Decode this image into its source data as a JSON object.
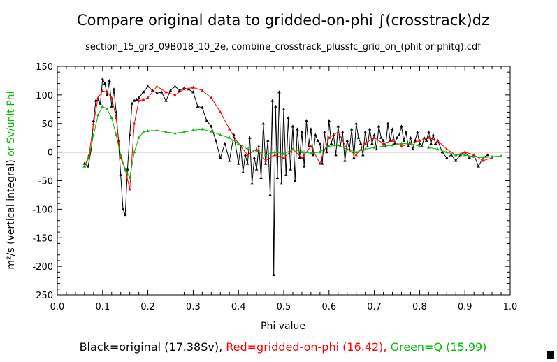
{
  "chart_data": {
    "type": "line",
    "title": "Compare original data to gridded-on-phi ∫(crosstrack)dz",
    "subtitle": "section_15_gr3_09B018_10_2e, combine_crosstrack_plussfc_grid_on_(phit or phitq).cdf",
    "xlabel": "Phi value",
    "ylabel_black": "m²/s (vertical integral)",
    "ylabel_or": " or ",
    "ylabel_green": "Sv/unit Phi",
    "xlim": [
      0.0,
      1.0
    ],
    "ylim": [
      -250,
      150
    ],
    "xticks": [
      "0.0",
      "0.1",
      "0.2",
      "0.3",
      "0.4",
      "0.5",
      "0.6",
      "0.7",
      "0.8",
      "0.9",
      "1.0"
    ],
    "yticks": [
      "150",
      "100",
      "50",
      "0",
      "-50",
      "-100",
      "-150",
      "-200",
      "-250"
    ],
    "footer": {
      "black": "Black=original (17.38Sv), ",
      "red": "Red=gridded-on-phi (16.42), ",
      "green": "Green=Q (15.99)"
    },
    "colors": {
      "black": "#000000",
      "red": "#ff0000",
      "green": "#00bb00"
    },
    "series": [
      {
        "color_key": "black",
        "x": [
          0.06,
          0.068,
          0.075,
          0.08,
          0.085,
          0.09,
          0.095,
          0.1,
          0.105,
          0.11,
          0.115,
          0.12,
          0.125,
          0.13,
          0.135,
          0.14,
          0.145,
          0.15,
          0.155,
          0.16,
          0.165,
          0.17,
          0.175,
          0.18,
          0.19,
          0.2,
          0.21,
          0.22,
          0.23,
          0.24,
          0.25,
          0.26,
          0.27,
          0.28,
          0.29,
          0.3,
          0.31,
          0.32,
          0.33,
          0.34,
          0.35,
          0.36,
          0.37,
          0.38,
          0.39,
          0.4,
          0.405,
          0.41,
          0.415,
          0.42,
          0.425,
          0.43,
          0.435,
          0.44,
          0.445,
          0.45,
          0.455,
          0.46,
          0.465,
          0.47,
          0.475,
          0.478,
          0.482,
          0.486,
          0.49,
          0.495,
          0.5,
          0.505,
          0.51,
          0.515,
          0.52,
          0.525,
          0.53,
          0.535,
          0.54,
          0.545,
          0.55,
          0.555,
          0.56,
          0.565,
          0.57,
          0.575,
          0.58,
          0.585,
          0.59,
          0.595,
          0.6,
          0.605,
          0.61,
          0.615,
          0.62,
          0.625,
          0.63,
          0.635,
          0.64,
          0.645,
          0.65,
          0.655,
          0.66,
          0.665,
          0.67,
          0.675,
          0.68,
          0.685,
          0.69,
          0.695,
          0.7,
          0.705,
          0.71,
          0.715,
          0.72,
          0.725,
          0.73,
          0.735,
          0.74,
          0.745,
          0.75,
          0.755,
          0.76,
          0.765,
          0.77,
          0.775,
          0.78,
          0.785,
          0.79,
          0.795,
          0.8,
          0.805,
          0.81,
          0.815,
          0.82,
          0.825,
          0.83,
          0.835,
          0.84,
          0.85,
          0.86,
          0.87,
          0.88,
          0.89,
          0.9,
          0.91,
          0.92,
          0.93,
          0.94,
          0.95
        ],
        "values": [
          -20,
          -25,
          5,
          55,
          90,
          92,
          85,
          128,
          120,
          100,
          125,
          80,
          110,
          70,
          20,
          -40,
          -100,
          -110,
          -30,
          30,
          85,
          90,
          92,
          95,
          105,
          115,
          108,
          103,
          105,
          90,
          108,
          115,
          108,
          112,
          110,
          105,
          80,
          78,
          55,
          45,
          20,
          -10,
          15,
          -15,
          30,
          -20,
          10,
          -35,
          -5,
          -20,
          25,
          -55,
          -10,
          -30,
          10,
          -45,
          50,
          -20,
          20,
          -75,
          90,
          -215,
          80,
          -45,
          105,
          -55,
          75,
          -40,
          60,
          -30,
          45,
          -50,
          40,
          -10,
          35,
          -25,
          55,
          10,
          40,
          -5,
          30,
          20,
          15,
          -20,
          35,
          0,
          55,
          15,
          30,
          -5,
          45,
          10,
          35,
          -15,
          20,
          5,
          40,
          -10,
          50,
          25,
          15,
          -5,
          35,
          10,
          40,
          15,
          30,
          5,
          45,
          25,
          20,
          10,
          50,
          20,
          40,
          15,
          25,
          30,
          45,
          20,
          35,
          10,
          25,
          5,
          20,
          35,
          15,
          10,
          25,
          20,
          35,
          15,
          30,
          15,
          20,
          0,
          -10,
          -5,
          -15,
          -5,
          0,
          -10,
          -5,
          -25,
          -10,
          -5
        ]
      },
      {
        "color_key": "red",
        "x": [
          0.06,
          0.07,
          0.08,
          0.09,
          0.1,
          0.11,
          0.12,
          0.13,
          0.14,
          0.15,
          0.16,
          0.17,
          0.18,
          0.19,
          0.2,
          0.22,
          0.24,
          0.26,
          0.28,
          0.3,
          0.32,
          0.34,
          0.36,
          0.38,
          0.4,
          0.42,
          0.44,
          0.46,
          0.48,
          0.5,
          0.52,
          0.54,
          0.56,
          0.58,
          0.6,
          0.62,
          0.64,
          0.66,
          0.68,
          0.7,
          0.72,
          0.74,
          0.76,
          0.78,
          0.8,
          0.82,
          0.84,
          0.86,
          0.88,
          0.9,
          0.92,
          0.94,
          0.96
        ],
        "values": [
          -25,
          -5,
          50,
          95,
          107,
          105,
          95,
          60,
          -10,
          -30,
          -65,
          50,
          90,
          92,
          95,
          115,
          105,
          100,
          110,
          113,
          108,
          95,
          70,
          40,
          15,
          -5,
          5,
          -15,
          -5,
          -10,
          5,
          -10,
          10,
          -20,
          25,
          35,
          5,
          -5,
          15,
          25,
          15,
          20,
          10,
          15,
          20,
          25,
          20,
          5,
          -5,
          0,
          -5,
          -15,
          -10
        ]
      },
      {
        "color_key": "green",
        "x": [
          0.06,
          0.07,
          0.08,
          0.09,
          0.1,
          0.11,
          0.12,
          0.13,
          0.14,
          0.15,
          0.16,
          0.17,
          0.18,
          0.19,
          0.2,
          0.22,
          0.24,
          0.26,
          0.28,
          0.3,
          0.32,
          0.34,
          0.36,
          0.38,
          0.4,
          0.42,
          0.44,
          0.46,
          0.48,
          0.5,
          0.52,
          0.54,
          0.56,
          0.58,
          0.6,
          0.62,
          0.64,
          0.66,
          0.68,
          0.7,
          0.72,
          0.74,
          0.76,
          0.78,
          0.8,
          0.82,
          0.84,
          0.86,
          0.88,
          0.9,
          0.92,
          0.94,
          0.96,
          0.98
        ],
        "values": [
          -25,
          -10,
          30,
          65,
          80,
          75,
          60,
          30,
          -5,
          -30,
          -45,
          0,
          25,
          35,
          37,
          38,
          35,
          33,
          35,
          38,
          40,
          36,
          30,
          25,
          15,
          5,
          2,
          -5,
          0,
          -3,
          5,
          0,
          -2,
          0,
          10,
          12,
          5,
          0,
          5,
          8,
          10,
          12,
          15,
          15,
          10,
          8,
          5,
          0,
          -5,
          -5,
          -8,
          -10,
          -8,
          -7
        ]
      }
    ]
  }
}
